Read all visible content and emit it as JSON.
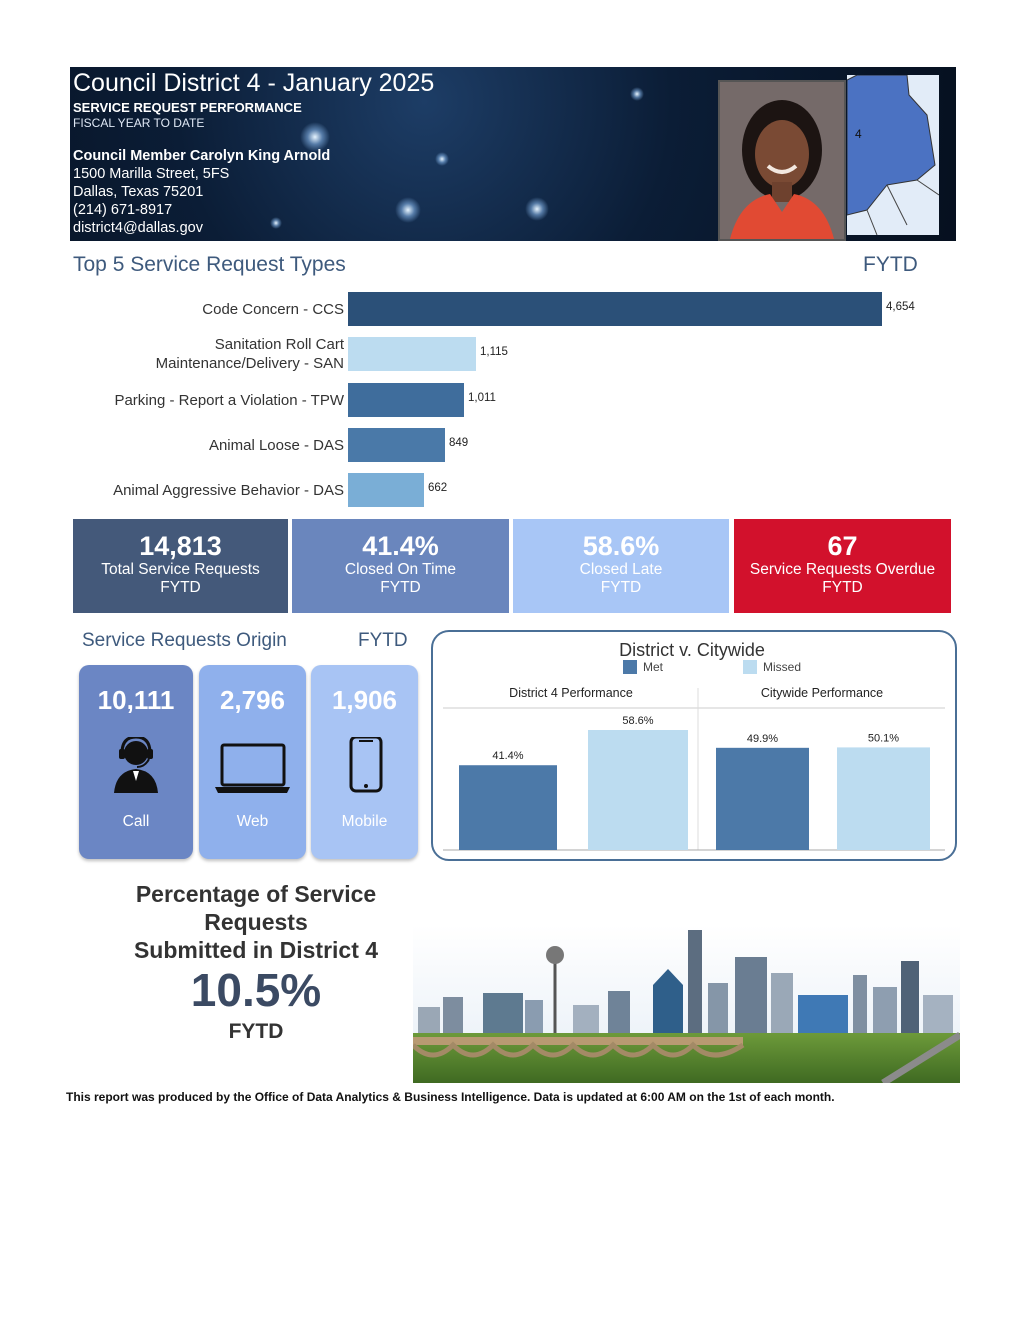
{
  "header": {
    "title": "Council District 4 - January 2025",
    "subtitle": "SERVICE REQUEST PERFORMANCE",
    "period": "FISCAL YEAR TO DATE",
    "member": "Council Member Carolyn King Arnold",
    "address_lines": [
      "1500 Marilla Street, 5FS",
      "Dallas, Texas 75201",
      "(214) 671-8917",
      "district4@dallas.gov"
    ],
    "map_label": "4"
  },
  "top5": {
    "title": "Top 5 Service Request Types",
    "period": "FYTD"
  },
  "chart_data": {
    "type": "bar",
    "orientation": "horizontal",
    "categories": [
      "Code Concern - CCS",
      "Sanitation Roll Cart Maintenance/Delivery - SAN",
      "Parking - Report a Violation - TPW",
      "Animal Loose - DAS",
      "Animal Aggressive Behavior - DAS"
    ],
    "category_lines": [
      [
        "Code Concern - CCS"
      ],
      [
        "Sanitation Roll Cart",
        "Maintenance/Delivery - SAN"
      ],
      [
        "Parking - Report a Violation - TPW"
      ],
      [
        "Animal Loose - DAS"
      ],
      [
        "Animal Aggressive Behavior - DAS"
      ]
    ],
    "values": [
      4654,
      1115,
      1011,
      849,
      662
    ],
    "value_labels": [
      "4,654",
      "1,115",
      "1,011",
      "849",
      "662"
    ],
    "colors": [
      "#2b5078",
      "#bcdcf0",
      "#3f6d9c",
      "#4a79a8",
      "#7aaed6"
    ]
  },
  "kpis": [
    {
      "value": "14,813",
      "label": "Total Service Requests",
      "period": "FYTD",
      "color": "#44597a"
    },
    {
      "value": "41.4%",
      "label": "Closed On Time",
      "period": "FYTD",
      "color": "#6a86bd"
    },
    {
      "value": "58.6%",
      "label": "Closed Late",
      "period": "FYTD",
      "color": "#a8c6f6"
    },
    {
      "value": "67",
      "label": "Service Requests Overdue",
      "period": "FYTD",
      "color": "#d2112c"
    }
  ],
  "origin": {
    "title": "Service Requests Origin",
    "period": "FYTD",
    "tiles": [
      {
        "value": "10,111",
        "label": "Call",
        "icon": "headset-agent-icon",
        "color": "#6b86c4"
      },
      {
        "value": "2,796",
        "label": "Web",
        "icon": "laptop-icon",
        "color": "#8fb0ec"
      },
      {
        "value": "1,906",
        "label": "Mobile",
        "icon": "smartphone-icon",
        "color": "#a8c4f4"
      }
    ]
  },
  "comparison": {
    "title": "District v. Citywide",
    "legend": [
      {
        "name": "Met",
        "color": "#4c79a8"
      },
      {
        "name": "Missed",
        "color": "#bcdcf0"
      }
    ],
    "panels": [
      {
        "title": "District 4 Performance",
        "values": [
          41.4,
          58.6
        ],
        "labels": [
          "41.4%",
          "58.6%"
        ]
      },
      {
        "title": "Citywide Performance",
        "values": [
          49.9,
          50.1
        ],
        "labels": [
          "49.9%",
          "50.1%"
        ]
      }
    ]
  },
  "percentage": {
    "line1": "Percentage of Service",
    "line2": "Requests",
    "line3": "Submitted in District 4",
    "value": "10.5%",
    "period": "FYTD"
  },
  "footer": "This report was produced by the Office of Data Analytics & Business Intelligence. Data is updated at 6:00 AM on the 1st of each month."
}
